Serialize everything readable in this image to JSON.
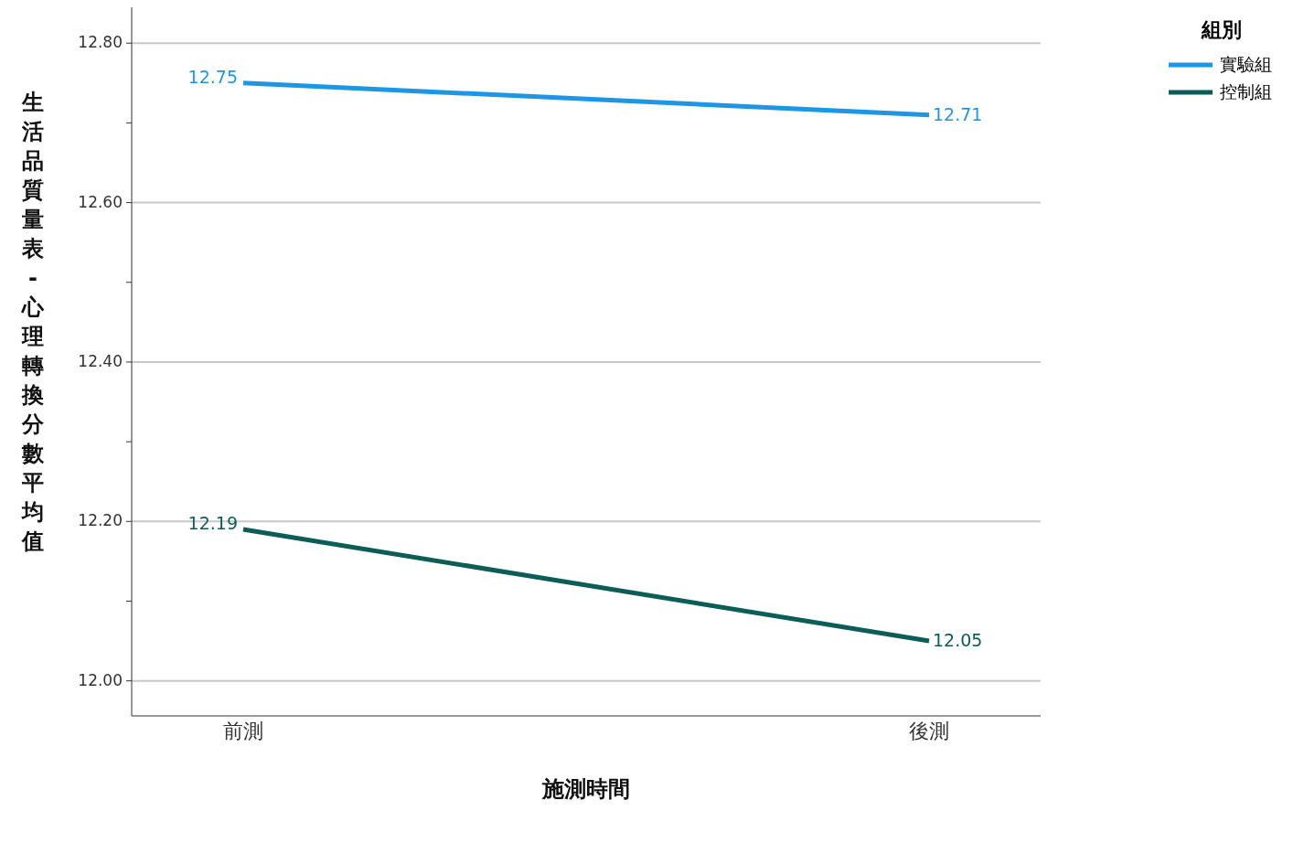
{
  "chart_data": {
    "type": "line",
    "xlabel": "施測時間",
    "ylabel": "生活品質量表-心理轉換分數平均值",
    "legend_title": "組別",
    "categories": [
      "前測",
      "後測"
    ],
    "series": [
      {
        "name": "實驗組",
        "color": "#1e96e6",
        "values": [
          12.75,
          12.71
        ]
      },
      {
        "name": "控制組",
        "color": "#0b5e57",
        "values": [
          12.19,
          12.05
        ]
      }
    ],
    "ylim": [
      11.956,
      12.845
    ],
    "yticks": [
      {
        "value": 12,
        "label": "12.00"
      },
      {
        "value": 12.1,
        "label": null
      },
      {
        "value": 12.2,
        "label": "12.20"
      },
      {
        "value": 12.3,
        "label": null
      },
      {
        "value": 12.4,
        "label": "12.40"
      },
      {
        "value": 12.5,
        "label": null
      },
      {
        "value": 12.6,
        "label": "12.60"
      },
      {
        "value": 12.7,
        "label": null
      },
      {
        "value": 12.8,
        "label": "12.80"
      }
    ],
    "grid": "y",
    "legend": "top right",
    "marker": "none",
    "line_style": "solid",
    "data_labels": true
  }
}
